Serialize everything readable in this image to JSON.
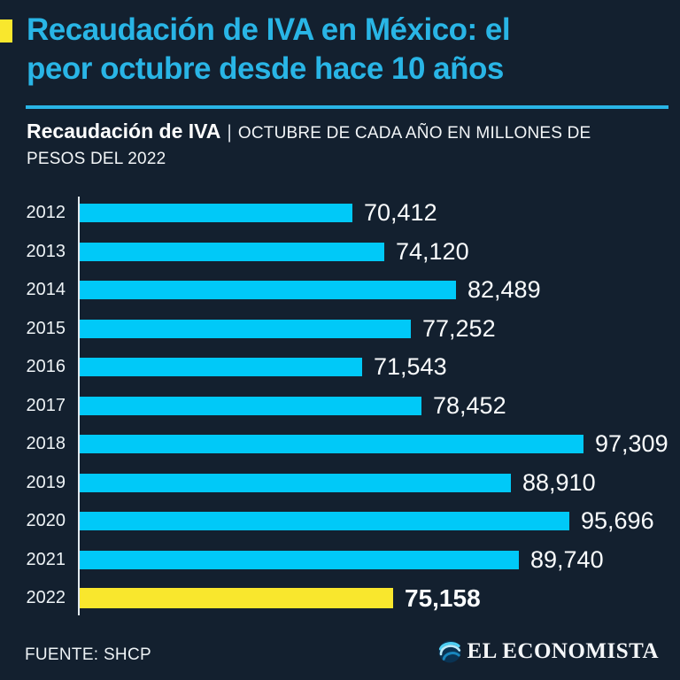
{
  "theme": {
    "background": "#13202f",
    "title_color": "#29b5e6",
    "accent_yellow": "#f9e72d",
    "bar_cyan": "#00c9f8",
    "text_white": "#ffffff"
  },
  "header": {
    "title_lines": [
      "Recaudación de IVA en México: el",
      "peor octubre desde hace 10 años"
    ],
    "subtitle": {
      "bold": "Recaudación de IVA",
      "separator": "|",
      "line1_rest": "OCTUBRE DE CADA AÑO EN MILLONES DE",
      "line2": "PESOS DEL 2022"
    }
  },
  "chart_data": {
    "type": "bar",
    "orientation": "horizontal",
    "title": "Recaudación de IVA",
    "subtitle": "Octubre de cada año en millones de pesos del 2022",
    "categories": [
      "2012",
      "2013",
      "2014",
      "2015",
      "2016",
      "2017",
      "2018",
      "2019",
      "2020",
      "2021",
      "2022"
    ],
    "values": [
      70412,
      74120,
      82489,
      77252,
      71543,
      78452,
      97309,
      88910,
      95696,
      89740,
      75158
    ],
    "value_labels": [
      "70,412",
      "74,120",
      "82,489",
      "77,252",
      "71,543",
      "78,452",
      "97,309",
      "88,910",
      "95,696",
      "89,740",
      "75,158"
    ],
    "highlight_index": 10,
    "bar_color": "#00c9f8",
    "highlight_color": "#f9e72d",
    "xlim": [
      38700,
      97309
    ],
    "grid": false,
    "legend": false,
    "axis_note": "bar lengths truncated at ~38,700; longest bar (97,309) spans full width"
  },
  "footer": {
    "source": "FUENTE: SHCP",
    "brand": "EL ECONOMISTA"
  }
}
